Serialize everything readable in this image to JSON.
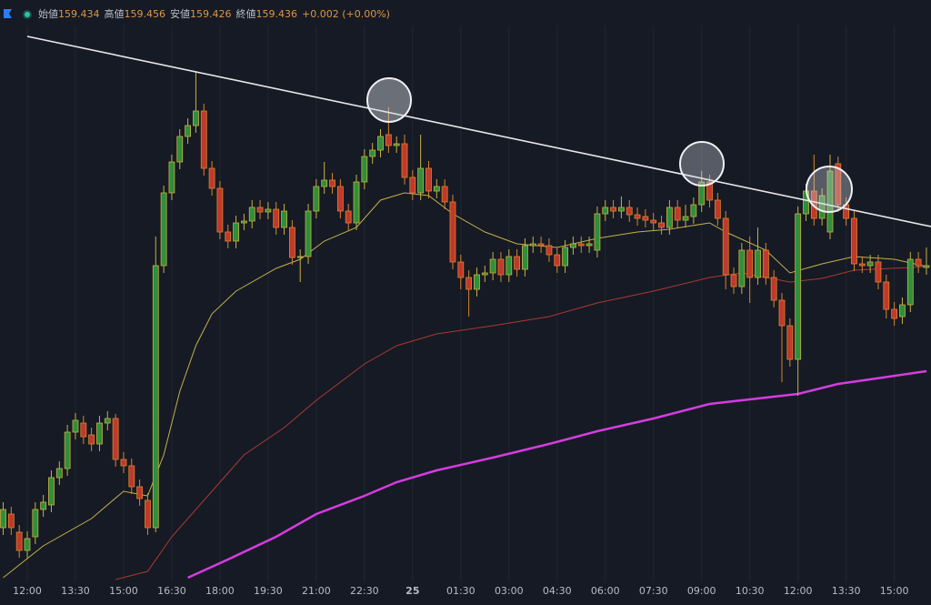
{
  "chart_data": {
    "type": "candlestick",
    "header": [
      {
        "label": "始値",
        "value": 159.434
      },
      {
        "label": "高値",
        "value": 159.456
      },
      {
        "label": "安値",
        "value": 159.426
      },
      {
        "label": "終値",
        "value": 159.436
      }
    ],
    "change": "+0.002 (+0.00%)",
    "categories": [
      null,
      null,
      null,
      "12:00",
      null,
      null,
      null,
      null,
      null,
      "13:30",
      null,
      null,
      null,
      null,
      null,
      "15:00",
      null,
      null,
      null,
      null,
      null,
      "16:30",
      null,
      null,
      null,
      null,
      null,
      "18:00",
      null,
      null,
      null,
      null,
      null,
      "19:30",
      null,
      null,
      null,
      null,
      null,
      "21:00",
      null,
      null,
      null,
      null,
      null,
      "22:30",
      null,
      null,
      null,
      null,
      null,
      "25",
      null,
      null,
      null,
      null,
      null,
      "01:30",
      null,
      null,
      null,
      null,
      null,
      "03:00",
      null,
      null,
      null,
      null,
      null,
      "04:30",
      null,
      null,
      null,
      null,
      null,
      "06:00",
      null,
      null,
      null,
      null,
      null,
      "07:30",
      null,
      null,
      null,
      null,
      null,
      "09:00",
      null,
      null,
      null,
      null,
      null,
      "10:30",
      null,
      null,
      null,
      null,
      null,
      "12:00",
      null,
      null,
      null,
      null,
      null,
      "13:30",
      null,
      null,
      null,
      null,
      null,
      "15:00",
      null,
      null,
      null,
      null
    ],
    "open": [
      159.148,
      159.163,
      159.143,
      159.123,
      159.138,
      159.168,
      159.173,
      159.203,
      159.213,
      159.253,
      159.263,
      159.25,
      159.24,
      159.263,
      159.268,
      159.223,
      159.216,
      159.193,
      159.178,
      159.148,
      159.436,
      159.516,
      159.55,
      159.578,
      159.59,
      159.606,
      159.543,
      159.521,
      159.473,
      159.463,
      159.483,
      159.485,
      159.5,
      159.495,
      159.498,
      159.478,
      159.478,
      159.445,
      159.446,
      159.496,
      159.523,
      159.53,
      159.523,
      159.496,
      159.483,
      159.528,
      159.556,
      159.563,
      159.58,
      159.568,
      159.57,
      159.533,
      159.516,
      159.543,
      159.518,
      159.523,
      159.506,
      159.44,
      159.423,
      159.41,
      159.426,
      159.428,
      159.443,
      159.426,
      159.446,
      159.432,
      159.458,
      159.46,
      159.458,
      159.448,
      159.436,
      159.456,
      159.46,
      159.458,
      159.453,
      159.493,
      159.5,
      159.496,
      159.5,
      159.492,
      159.49,
      159.486,
      159.483,
      159.478,
      159.5,
      159.486,
      159.49,
      159.503,
      159.528,
      159.508,
      159.488,
      159.426,
      159.413,
      159.453,
      159.423,
      159.453,
      159.423,
      159.398,
      159.37,
      159.333,
      159.493,
      159.518,
      159.488,
      159.473,
      159.548,
      159.503,
      159.488,
      159.438,
      159.436,
      159.44,
      159.418,
      159.388,
      159.38,
      159.393,
      159.443,
      159.434
    ],
    "high": [
      159.176,
      159.171,
      159.151,
      159.144,
      159.176,
      159.184,
      159.211,
      159.221,
      159.261,
      159.274,
      159.271,
      159.258,
      159.271,
      159.276,
      159.273,
      159.231,
      159.224,
      159.201,
      159.186,
      159.468,
      159.524,
      159.558,
      159.586,
      159.598,
      159.65,
      159.614,
      159.551,
      159.529,
      159.481,
      159.491,
      159.493,
      159.508,
      159.508,
      159.506,
      159.506,
      159.504,
      159.486,
      159.454,
      159.504,
      159.531,
      159.55,
      159.538,
      159.531,
      159.504,
      159.536,
      159.564,
      159.571,
      159.586,
      159.61,
      159.578,
      159.58,
      159.541,
      159.58,
      159.551,
      159.531,
      159.531,
      159.514,
      159.448,
      159.431,
      159.434,
      159.436,
      159.451,
      159.451,
      159.454,
      159.454,
      159.466,
      159.468,
      159.468,
      159.466,
      159.456,
      159.464,
      159.468,
      159.468,
      159.468,
      159.501,
      159.508,
      159.508,
      159.512,
      159.508,
      159.5,
      159.498,
      159.494,
      159.491,
      159.508,
      159.508,
      159.503,
      159.511,
      159.54,
      159.536,
      159.516,
      159.496,
      159.434,
      159.461,
      159.468,
      159.478,
      159.461,
      159.431,
      159.406,
      159.378,
      159.501,
      159.526,
      159.558,
      159.521,
      159.558,
      159.556,
      159.511,
      159.496,
      159.446,
      159.448,
      159.448,
      159.426,
      159.396,
      159.401,
      159.451,
      159.451,
      159.456
    ],
    "low": [
      159.14,
      159.14,
      159.115,
      159.115,
      159.13,
      159.16,
      159.165,
      159.195,
      159.205,
      159.245,
      159.24,
      159.232,
      159.232,
      159.255,
      159.215,
      159.208,
      159.185,
      159.172,
      159.14,
      159.143,
      159.428,
      159.508,
      159.542,
      159.57,
      159.582,
      159.535,
      159.513,
      159.465,
      159.455,
      159.455,
      159.475,
      159.477,
      159.487,
      159.487,
      159.47,
      159.47,
      159.437,
      159.418,
      159.438,
      159.488,
      159.515,
      159.515,
      159.488,
      159.475,
      159.475,
      159.52,
      159.548,
      159.555,
      159.56,
      159.56,
      159.525,
      159.508,
      159.508,
      159.51,
      159.51,
      159.498,
      159.432,
      159.41,
      159.38,
      159.402,
      159.418,
      159.42,
      159.418,
      159.418,
      159.424,
      159.424,
      159.45,
      159.45,
      159.44,
      159.428,
      159.428,
      159.448,
      159.45,
      159.45,
      159.445,
      159.485,
      159.488,
      159.488,
      159.484,
      159.48,
      159.478,
      159.475,
      159.47,
      159.47,
      159.478,
      159.478,
      159.482,
      159.495,
      159.5,
      159.48,
      159.41,
      159.405,
      159.405,
      159.395,
      159.415,
      159.415,
      159.39,
      159.308,
      159.325,
      159.293,
      159.485,
      159.48,
      159.48,
      159.465,
      159.495,
      159.48,
      159.43,
      159.428,
      159.428,
      159.41,
      159.378,
      159.37,
      159.372,
      159.385,
      159.428,
      159.426
    ],
    "close": [
      159.168,
      159.148,
      159.123,
      159.136,
      159.168,
      159.176,
      159.203,
      159.213,
      159.253,
      159.266,
      159.248,
      159.24,
      159.263,
      159.268,
      159.223,
      159.216,
      159.193,
      159.18,
      159.148,
      159.436,
      159.516,
      159.55,
      159.578,
      159.59,
      159.606,
      159.543,
      159.521,
      159.473,
      159.463,
      159.483,
      159.485,
      159.5,
      159.495,
      159.498,
      159.478,
      159.496,
      159.445,
      159.446,
      159.496,
      159.523,
      159.53,
      159.523,
      159.496,
      159.483,
      159.528,
      159.556,
      159.563,
      159.578,
      159.568,
      159.57,
      159.533,
      159.516,
      159.543,
      159.518,
      159.523,
      159.506,
      159.44,
      159.423,
      159.41,
      159.426,
      159.428,
      159.443,
      159.426,
      159.446,
      159.432,
      159.458,
      159.46,
      159.458,
      159.448,
      159.436,
      159.456,
      159.46,
      159.458,
      159.46,
      159.493,
      159.5,
      159.496,
      159.5,
      159.492,
      159.488,
      159.486,
      159.483,
      159.478,
      159.5,
      159.486,
      159.49,
      159.503,
      159.528,
      159.508,
      159.488,
      159.426,
      159.413,
      159.453,
      159.423,
      159.453,
      159.423,
      159.398,
      159.37,
      159.333,
      159.493,
      159.518,
      159.488,
      159.513,
      159.54,
      159.503,
      159.488,
      159.438,
      159.436,
      159.44,
      159.418,
      159.388,
      159.378,
      159.393,
      159.443,
      159.436,
      159.436
    ],
    "up_color": "#2f8f3a",
    "up_border": "#c9b040",
    "down_color": "#c0392b",
    "down_border": "#d8862c",
    "ylim": [
      159.088,
      159.728
    ],
    "series": [
      {
        "color": "#c4b04a",
        "line_width": 1,
        "x": [
          0,
          5,
          11,
          15,
          18,
          20,
          22,
          24,
          26,
          29,
          34,
          37,
          40,
          44,
          47,
          50,
          53,
          56,
          60,
          64,
          69,
          74,
          79,
          83,
          88,
          90,
          95,
          98,
          102,
          106,
          111,
          115
        ],
        "values": [
          159.093,
          159.128,
          159.158,
          159.188,
          159.183,
          159.228,
          159.298,
          159.348,
          159.383,
          159.408,
          159.433,
          159.443,
          159.463,
          159.478,
          159.508,
          159.516,
          159.513,
          159.493,
          159.473,
          159.46,
          159.456,
          159.466,
          159.473,
          159.476,
          159.483,
          159.473,
          159.453,
          159.428,
          159.438,
          159.446,
          159.443,
          159.435
        ]
      },
      {
        "color": "#a83a32",
        "line_width": 1,
        "x": [
          14,
          18,
          21,
          26,
          30,
          35,
          39,
          45,
          49,
          54,
          61,
          68,
          74,
          81,
          88,
          92,
          98,
          102,
          106,
          113,
          115
        ],
        "values": [
          159.091,
          159.1,
          159.138,
          159.188,
          159.228,
          159.258,
          159.288,
          159.328,
          159.348,
          159.361,
          159.37,
          159.38,
          159.395,
          159.408,
          159.423,
          159.428,
          159.418,
          159.422,
          159.431,
          159.434,
          159.435
        ]
      },
      {
        "color": "#d63ce0",
        "line_width": 2.5,
        "x": [
          23,
          28,
          34,
          39,
          45,
          49,
          54,
          61,
          68,
          74,
          81,
          88,
          95,
          99,
          104,
          108,
          115
        ],
        "values": [
          159.093,
          159.113,
          159.138,
          159.163,
          159.183,
          159.198,
          159.211,
          159.225,
          159.24,
          159.254,
          159.268,
          159.284,
          159.291,
          159.295,
          159.306,
          159.311,
          159.32
        ]
      }
    ],
    "grid": true
  }
}
